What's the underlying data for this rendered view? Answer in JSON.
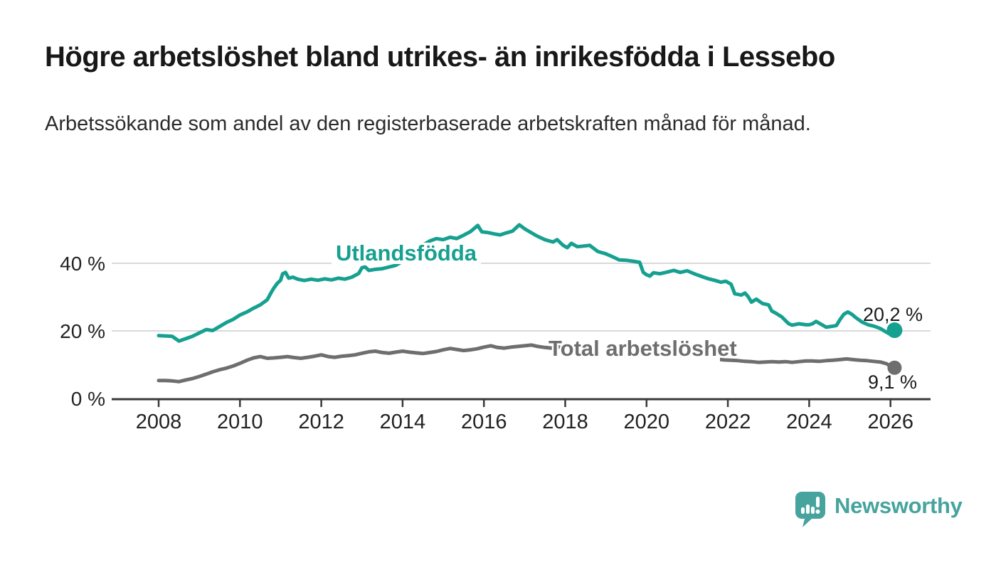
{
  "header": {
    "title": "Högre arbetslöshet bland utrikes- än inrikesfödda i Lessebo",
    "subtitle": "Arbetssökande som andel av den registerbaserade arbetskraften månad för månad."
  },
  "chart_data": {
    "type": "line",
    "title": "",
    "xlabel": "",
    "ylabel": "",
    "x_axis": {
      "tick_labels": [
        "2008",
        "2010",
        "2012",
        "2014",
        "2016",
        "2018",
        "2020",
        "2022",
        "2024",
        "2026"
      ],
      "tick_values": [
        2008,
        2010,
        2012,
        2014,
        2016,
        2018,
        2020,
        2022,
        2024,
        2026
      ],
      "range": [
        2008,
        2026.2
      ]
    },
    "y_axis": {
      "tick_labels": [
        "0 %",
        "20 %",
        "40 %"
      ],
      "tick_values": [
        0,
        20,
        40
      ],
      "range": [
        0,
        55
      ],
      "unit": "%"
    },
    "grid": "horizontal",
    "legend_position": "inline-labels",
    "series": [
      {
        "name": "Utlandsfödda",
        "color": "#16a090",
        "end_label": "20,2 %",
        "end_value": 20.2,
        "points": [
          [
            2008.0,
            18.6
          ],
          [
            2008.17,
            18.5
          ],
          [
            2008.33,
            18.4
          ],
          [
            2008.5,
            17.0
          ],
          [
            2008.67,
            17.7
          ],
          [
            2008.83,
            18.4
          ],
          [
            2009.0,
            19.4
          ],
          [
            2009.17,
            20.4
          ],
          [
            2009.33,
            20.1
          ],
          [
            2009.5,
            21.3
          ],
          [
            2009.67,
            22.5
          ],
          [
            2009.83,
            23.4
          ],
          [
            2010.0,
            24.7
          ],
          [
            2010.17,
            25.6
          ],
          [
            2010.33,
            26.7
          ],
          [
            2010.5,
            27.7
          ],
          [
            2010.67,
            29.2
          ],
          [
            2010.75,
            31.0
          ],
          [
            2010.83,
            32.6
          ],
          [
            2010.92,
            34.1
          ],
          [
            2011.0,
            35.0
          ],
          [
            2011.05,
            36.9
          ],
          [
            2011.12,
            37.3
          ],
          [
            2011.2,
            35.6
          ],
          [
            2011.3,
            35.9
          ],
          [
            2011.42,
            35.3
          ],
          [
            2011.58,
            34.9
          ],
          [
            2011.75,
            35.3
          ],
          [
            2011.92,
            35.0
          ],
          [
            2012.08,
            35.4
          ],
          [
            2012.25,
            35.1
          ],
          [
            2012.42,
            35.6
          ],
          [
            2012.58,
            35.3
          ],
          [
            2012.75,
            35.9
          ],
          [
            2012.92,
            37.0
          ],
          [
            2013.0,
            38.7
          ],
          [
            2013.08,
            38.9
          ],
          [
            2013.17,
            37.9
          ],
          [
            2013.33,
            38.2
          ],
          [
            2013.5,
            38.4
          ],
          [
            2013.67,
            38.9
          ],
          [
            2013.83,
            39.4
          ],
          [
            2014.0,
            40.6
          ],
          [
            2014.17,
            42.2
          ],
          [
            2014.33,
            43.8
          ],
          [
            2014.5,
            45.4
          ],
          [
            2014.67,
            46.6
          ],
          [
            2014.83,
            47.3
          ],
          [
            2015.0,
            47.0
          ],
          [
            2015.17,
            47.7
          ],
          [
            2015.33,
            47.3
          ],
          [
            2015.5,
            48.3
          ],
          [
            2015.67,
            49.4
          ],
          [
            2015.85,
            51.2
          ],
          [
            2015.95,
            49.3
          ],
          [
            2016.1,
            49.1
          ],
          [
            2016.25,
            48.7
          ],
          [
            2016.4,
            48.4
          ],
          [
            2016.55,
            49.0
          ],
          [
            2016.7,
            49.5
          ],
          [
            2016.87,
            51.4
          ],
          [
            2017.0,
            50.2
          ],
          [
            2017.1,
            49.5
          ],
          [
            2017.3,
            48.1
          ],
          [
            2017.5,
            47.0
          ],
          [
            2017.7,
            46.3
          ],
          [
            2017.8,
            47.0
          ],
          [
            2017.95,
            45.3
          ],
          [
            2018.05,
            44.6
          ],
          [
            2018.15,
            45.9
          ],
          [
            2018.3,
            44.9
          ],
          [
            2018.45,
            45.1
          ],
          [
            2018.6,
            45.3
          ],
          [
            2018.8,
            43.5
          ],
          [
            2019.0,
            42.8
          ],
          [
            2019.17,
            41.9
          ],
          [
            2019.33,
            41.0
          ],
          [
            2019.5,
            40.9
          ],
          [
            2019.67,
            40.6
          ],
          [
            2019.83,
            40.3
          ],
          [
            2019.92,
            37.3
          ],
          [
            2020.0,
            36.6
          ],
          [
            2020.08,
            36.2
          ],
          [
            2020.17,
            37.2
          ],
          [
            2020.33,
            36.9
          ],
          [
            2020.5,
            37.4
          ],
          [
            2020.67,
            37.9
          ],
          [
            2020.83,
            37.3
          ],
          [
            2021.0,
            37.8
          ],
          [
            2021.17,
            36.9
          ],
          [
            2021.33,
            36.2
          ],
          [
            2021.5,
            35.5
          ],
          [
            2021.67,
            35.0
          ],
          [
            2021.83,
            34.4
          ],
          [
            2021.95,
            34.7
          ],
          [
            2022.08,
            33.8
          ],
          [
            2022.17,
            31.0
          ],
          [
            2022.33,
            30.6
          ],
          [
            2022.42,
            31.2
          ],
          [
            2022.5,
            30.1
          ],
          [
            2022.58,
            28.5
          ],
          [
            2022.7,
            29.4
          ],
          [
            2022.85,
            28.1
          ],
          [
            2023.0,
            27.7
          ],
          [
            2023.08,
            25.9
          ],
          [
            2023.17,
            25.3
          ],
          [
            2023.33,
            24.1
          ],
          [
            2023.42,
            23.0
          ],
          [
            2023.5,
            22.1
          ],
          [
            2023.58,
            21.7
          ],
          [
            2023.75,
            22.1
          ],
          [
            2023.92,
            21.8
          ],
          [
            2024.0,
            21.8
          ],
          [
            2024.08,
            22.1
          ],
          [
            2024.17,
            22.8
          ],
          [
            2024.33,
            21.7
          ],
          [
            2024.42,
            21.1
          ],
          [
            2024.58,
            21.4
          ],
          [
            2024.67,
            21.6
          ],
          [
            2024.75,
            23.2
          ],
          [
            2024.85,
            24.9
          ],
          [
            2024.95,
            25.6
          ],
          [
            2025.05,
            24.9
          ],
          [
            2025.15,
            23.9
          ],
          [
            2025.3,
            22.6
          ],
          [
            2025.45,
            21.8
          ],
          [
            2025.6,
            21.4
          ],
          [
            2025.75,
            20.7
          ],
          [
            2025.9,
            19.6
          ],
          [
            2026.0,
            19.0
          ],
          [
            2026.1,
            20.2
          ]
        ]
      },
      {
        "name": "Total arbetslöshet",
        "color": "#6e6e6e",
        "end_label": "9,1 %",
        "end_value": 9.1,
        "points": [
          [
            2008.0,
            5.3
          ],
          [
            2008.17,
            5.3
          ],
          [
            2008.33,
            5.2
          ],
          [
            2008.5,
            5.0
          ],
          [
            2008.67,
            5.5
          ],
          [
            2008.83,
            5.9
          ],
          [
            2009.0,
            6.5
          ],
          [
            2009.17,
            7.2
          ],
          [
            2009.33,
            7.9
          ],
          [
            2009.5,
            8.5
          ],
          [
            2009.67,
            9.0
          ],
          [
            2009.83,
            9.6
          ],
          [
            2010.0,
            10.4
          ],
          [
            2010.17,
            11.3
          ],
          [
            2010.33,
            12.0
          ],
          [
            2010.5,
            12.4
          ],
          [
            2010.67,
            11.9
          ],
          [
            2010.83,
            12.0
          ],
          [
            2011.0,
            12.2
          ],
          [
            2011.17,
            12.4
          ],
          [
            2011.33,
            12.1
          ],
          [
            2011.5,
            11.9
          ],
          [
            2011.67,
            12.2
          ],
          [
            2011.83,
            12.5
          ],
          [
            2012.0,
            12.9
          ],
          [
            2012.17,
            12.4
          ],
          [
            2012.33,
            12.2
          ],
          [
            2012.5,
            12.5
          ],
          [
            2012.67,
            12.7
          ],
          [
            2012.83,
            12.9
          ],
          [
            2013.0,
            13.4
          ],
          [
            2013.17,
            13.8
          ],
          [
            2013.33,
            14.0
          ],
          [
            2013.5,
            13.6
          ],
          [
            2013.67,
            13.4
          ],
          [
            2013.83,
            13.7
          ],
          [
            2014.0,
            14.0
          ],
          [
            2014.17,
            13.7
          ],
          [
            2014.33,
            13.5
          ],
          [
            2014.5,
            13.3
          ],
          [
            2014.67,
            13.6
          ],
          [
            2014.83,
            13.9
          ],
          [
            2015.0,
            14.4
          ],
          [
            2015.17,
            14.8
          ],
          [
            2015.33,
            14.5
          ],
          [
            2015.5,
            14.2
          ],
          [
            2015.67,
            14.4
          ],
          [
            2015.83,
            14.7
          ],
          [
            2016.0,
            15.2
          ],
          [
            2016.17,
            15.6
          ],
          [
            2016.33,
            15.1
          ],
          [
            2016.5,
            14.9
          ],
          [
            2016.67,
            15.2
          ],
          [
            2016.83,
            15.4
          ],
          [
            2017.0,
            15.6
          ],
          [
            2017.17,
            15.8
          ],
          [
            2017.33,
            15.4
          ],
          [
            2017.5,
            15.1
          ],
          [
            2017.67,
            14.9
          ],
          [
            2017.83,
            15.3
          ],
          [
            2017.95,
            14.8
          ],
          [
            2018.17,
            15.0
          ],
          [
            2018.42,
            14.6
          ],
          [
            2018.67,
            14.4
          ],
          [
            2018.92,
            14.1
          ],
          [
            2019.17,
            13.9
          ],
          [
            2019.42,
            13.7
          ],
          [
            2019.67,
            13.6
          ],
          [
            2019.92,
            13.4
          ],
          [
            2020.17,
            13.6
          ],
          [
            2020.42,
            13.9
          ],
          [
            2020.67,
            13.6
          ],
          [
            2020.92,
            13.1
          ],
          [
            2021.17,
            12.6
          ],
          [
            2021.42,
            12.1
          ],
          [
            2021.67,
            11.7
          ],
          [
            2021.92,
            11.4
          ],
          [
            2022.08,
            11.3
          ],
          [
            2022.25,
            11.2
          ],
          [
            2022.42,
            11.0
          ],
          [
            2022.58,
            10.9
          ],
          [
            2022.75,
            10.7
          ],
          [
            2022.92,
            10.8
          ],
          [
            2023.08,
            10.9
          ],
          [
            2023.25,
            10.8
          ],
          [
            2023.42,
            10.9
          ],
          [
            2023.58,
            10.7
          ],
          [
            2023.75,
            10.9
          ],
          [
            2023.92,
            11.1
          ],
          [
            2024.08,
            11.1
          ],
          [
            2024.25,
            11.0
          ],
          [
            2024.42,
            11.2
          ],
          [
            2024.58,
            11.3
          ],
          [
            2024.75,
            11.5
          ],
          [
            2024.92,
            11.7
          ],
          [
            2025.08,
            11.5
          ],
          [
            2025.25,
            11.3
          ],
          [
            2025.42,
            11.2
          ],
          [
            2025.58,
            11.0
          ],
          [
            2025.75,
            10.8
          ],
          [
            2025.9,
            10.3
          ],
          [
            2026.0,
            9.6
          ],
          [
            2026.1,
            9.1
          ]
        ]
      }
    ]
  },
  "footer": {
    "brand": "Newsworthy",
    "logo_icon": "newsworthy-speech-bubble-bar-chart-icon",
    "brand_color": "#46a39e"
  },
  "colors": {
    "background": "#ffffff",
    "title_text": "#181818",
    "subtitle_text": "#2b2b2b",
    "axis_line": "#3a3a3a",
    "grid_line": "#d9d9d9",
    "tick_label": "#222222",
    "value_label": "#1a1a1a",
    "series_teal": "#16a090",
    "series_gray": "#6e6e6e"
  }
}
